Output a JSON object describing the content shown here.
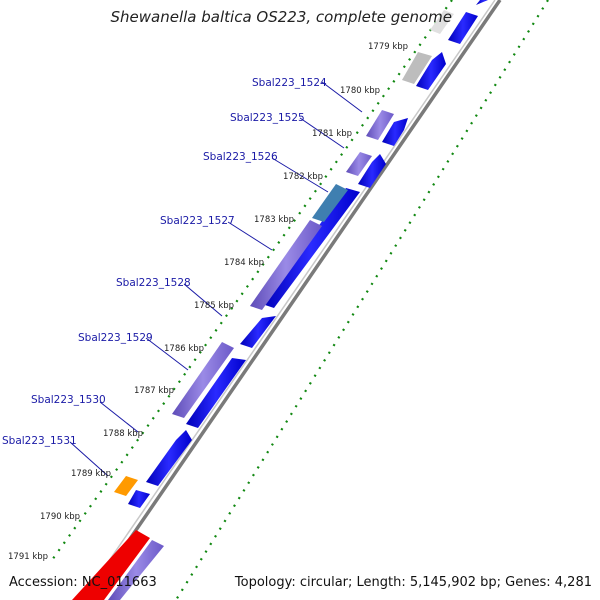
{
  "title": "Shewanella baltica OS223, complete genome",
  "footer": {
    "accession": "Accession: NC_011663",
    "summary": "Topology: circular; Length: 5,145,902 bp; Genes: 4,281"
  },
  "ticks": [
    "1779 kbp",
    "1780 kbp",
    "1781 kbp",
    "1782 kbp",
    "1783 kbp",
    "1784 kbp",
    "1785 kbp",
    "1786 kbp",
    "1787 kbp",
    "1788 kbp",
    "1789 kbp",
    "1790 kbp",
    "1791 kbp"
  ],
  "gene_labels": [
    "Sbal223_1524",
    "Sbal223_1525",
    "Sbal223_1526",
    "Sbal223_1527",
    "Sbal223_1528",
    "Sbal223_1529",
    "Sbal223_1530",
    "Sbal223_1531"
  ],
  "colors": {
    "backbone": "#7a7a7a",
    "cds_blue": "#0000ee",
    "cog_purple": "#7b68d6",
    "cog_steel": "#3f7fb0",
    "cog_orange": "#ff9a00",
    "cog_red": "#ee0000",
    "cog_gray": "#bdbdbd",
    "gc_dots": "#118811",
    "label_blue": "#1a1aa6"
  }
}
